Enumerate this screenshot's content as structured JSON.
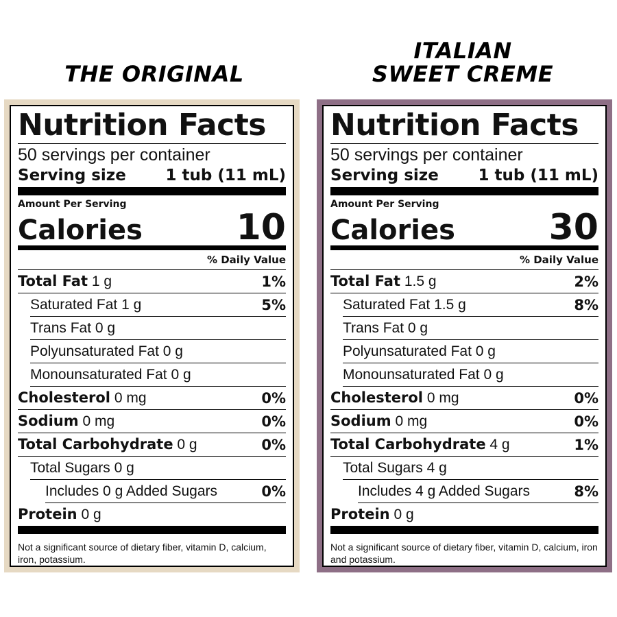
{
  "products": [
    {
      "heading": [
        "THE ORIGINAL"
      ],
      "label": {
        "title": "Nutrition Facts",
        "servings": "50 servings per container",
        "serving_size_label": "Serving size",
        "serving_size_value": "1 tub (11 mL)",
        "amount_per_serving": "Amount Per Serving",
        "calories_label": "Calories",
        "calories_value": "10",
        "daily_value_header": "% Daily Value",
        "rows": [
          {
            "name": "Total Fat",
            "bold": true,
            "amount": "1 g",
            "dv": "1%",
            "indent": 0
          },
          {
            "name": "Saturated Fat",
            "bold": false,
            "amount": "1 g",
            "dv": "5%",
            "indent": 1
          },
          {
            "name": "Trans Fat",
            "bold": false,
            "amount": "0 g",
            "dv": "",
            "indent": 1
          },
          {
            "name": "Polyunsaturated Fat",
            "bold": false,
            "amount": "0 g",
            "dv": "",
            "indent": 1
          },
          {
            "name": "Monounsaturated Fat",
            "bold": false,
            "amount": "0 g",
            "dv": "",
            "indent": 1
          },
          {
            "name": "Cholesterol",
            "bold": true,
            "amount": "0 mg",
            "dv": "0%",
            "indent": 0
          },
          {
            "name": "Sodium",
            "bold": true,
            "amount": "0 mg",
            "dv": "0%",
            "indent": 0
          },
          {
            "name": "Total Carbohydrate",
            "bold": true,
            "amount": "0 g",
            "dv": "0%",
            "indent": 0
          },
          {
            "name": "Total Sugars",
            "bold": false,
            "amount": "0 g",
            "dv": "",
            "indent": 1
          },
          {
            "name": "Includes 0 g Added Sugars",
            "bold": false,
            "amount": "",
            "dv": "0%",
            "indent": 2
          },
          {
            "name": "Protein",
            "bold": true,
            "amount": "0 g",
            "dv": "",
            "indent": 0
          }
        ],
        "footnote": "Not a significant source of dietary fiber, vitamin D, calcium, iron, potassium."
      }
    },
    {
      "heading": [
        "ITALIAN",
        "SWEET CREME"
      ],
      "label": {
        "title": "Nutrition Facts",
        "servings": "50 servings per container",
        "serving_size_label": "Serving size",
        "serving_size_value": "1 tub (11 mL)",
        "amount_per_serving": "Amount Per Serving",
        "calories_label": "Calories",
        "calories_value": "30",
        "daily_value_header": "% Daily Value",
        "rows": [
          {
            "name": "Total Fat",
            "bold": true,
            "amount": "1.5 g",
            "dv": "2%",
            "indent": 0
          },
          {
            "name": "Saturated Fat",
            "bold": false,
            "amount": "1.5 g",
            "dv": "8%",
            "indent": 1
          },
          {
            "name": "Trans Fat",
            "bold": false,
            "amount": "0 g",
            "dv": "",
            "indent": 1
          },
          {
            "name": "Polyunsaturated Fat",
            "bold": false,
            "amount": "0 g",
            "dv": "",
            "indent": 1
          },
          {
            "name": "Monounsaturated Fat",
            "bold": false,
            "amount": "0 g",
            "dv": "",
            "indent": 1
          },
          {
            "name": "Cholesterol",
            "bold": true,
            "amount": "0 mg",
            "dv": "0%",
            "indent": 0
          },
          {
            "name": "Sodium",
            "bold": true,
            "amount": "0 mg",
            "dv": "0%",
            "indent": 0
          },
          {
            "name": "Total Carbohydrate",
            "bold": true,
            "amount": "4 g",
            "dv": "1%",
            "indent": 0
          },
          {
            "name": "Total Sugars",
            "bold": false,
            "amount": "4 g",
            "dv": "",
            "indent": 1
          },
          {
            "name": "Includes 4 g Added Sugars",
            "bold": false,
            "amount": "",
            "dv": "8%",
            "indent": 2
          },
          {
            "name": "Protein",
            "bold": true,
            "amount": "0 g",
            "dv": "",
            "indent": 0
          }
        ],
        "footnote": "Not a significant source of dietary fiber, vitamin D, calcium, iron and potassium."
      }
    }
  ],
  "colors": {
    "original_border": "#e6d9c3",
    "sweet_creme_border": "#8e6f86"
  }
}
